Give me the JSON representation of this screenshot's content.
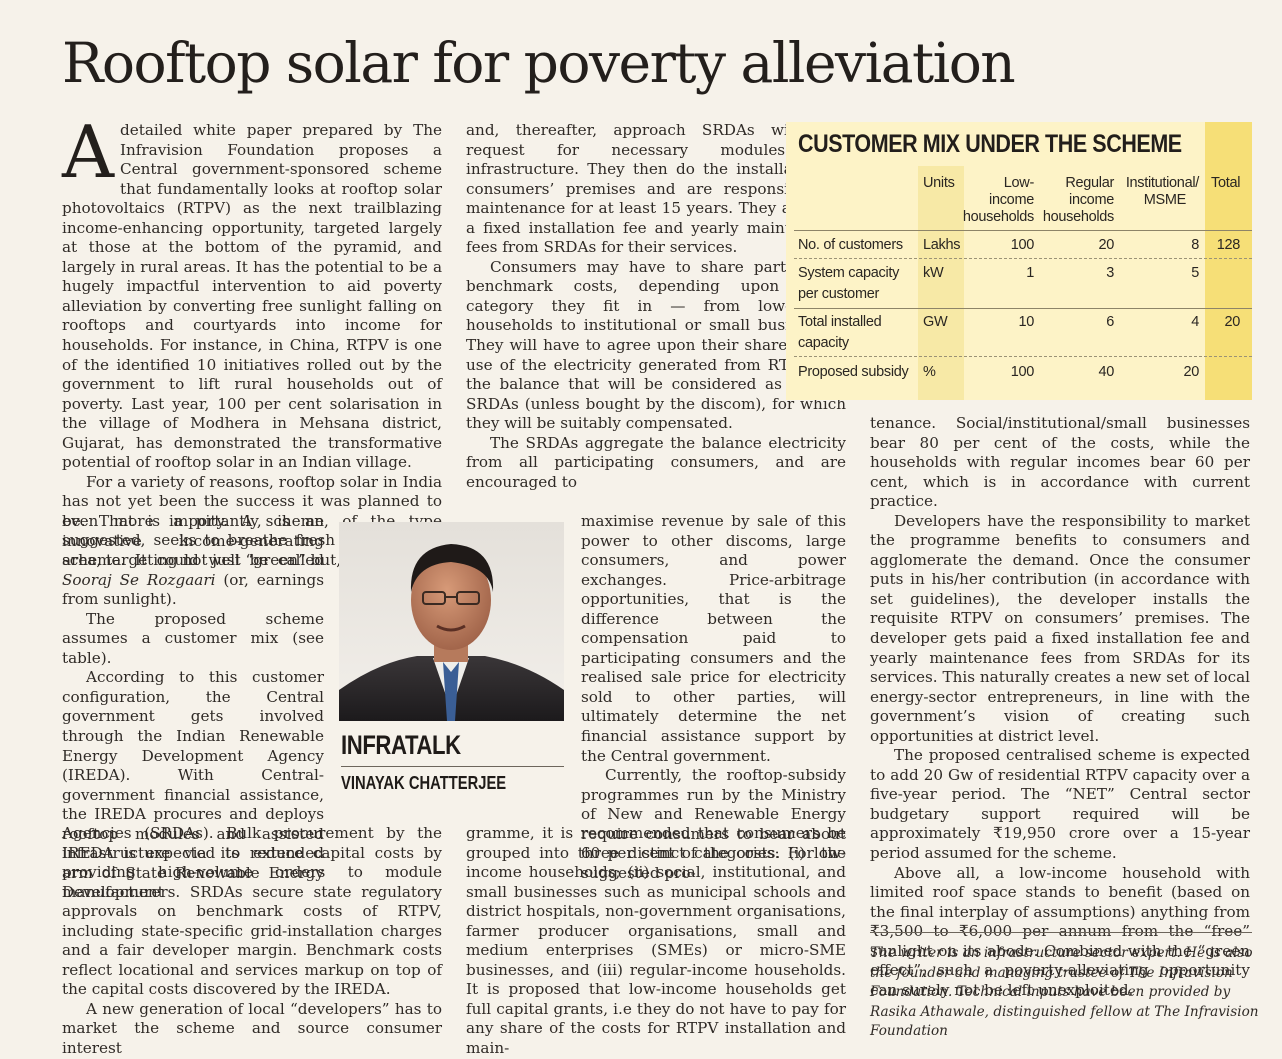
{
  "headline": "Rooftop solar for poverty alleviation",
  "article": {
    "dropcap": "A",
    "col1_lead": "detailed white paper prepared by The Infravision Foundation proposes a Central government-sponsored scheme that fundamentally looks at rooftop solar photovoltaics (RTPV) as the next trailblazing income-enhancing opportunity, targeted largely at those at the bottom of the pyramid, and largely in rural areas. It has the potential to be a hugely impactful intervention to aid poverty alleviation by converting free sunlight falling on rooftops and courtyards into income for households. For instance, in China, RTPV is one of the identified 10 initiatives rolled out by the government to lift rural households out of poverty. Last year, 100 per cent solarisation in the village of Modhera in Mehsana district, Gujarat, has demonstrated the transformative potential of rooftop solar in an Indian village.",
    "col1_p2": "For a variety of reasons, rooftop solar in India has not yet been the success it was planned to be. That is a pity. A scheme, of the type suggested, seeks to breathe fresh life into this area, targeting not just “green” but,",
    "col1b_p2_cont_a": "even more importantly, is an innovative income-generating scheme. It could well be called",
    "col1b_p2_cont_em": "Sooraj Se Rozgaari",
    "col1b_p2_cont_b": "(or, earnings from sunlight).",
    "col1b_p3": "The proposed scheme assumes a customer mix (see table).",
    "col1b_p4": "According to this customer configuration, the Central government gets involved through the Indian Renewable Energy Development Agency (IREDA). With Central-government financial assistance, the IREDA procures and deploys rooftop modules and assisted infrastructure via its extended arm of State Renewable Energy Development",
    "col1c_p4_cont": "Agencies (SRDAs). Bulk procurement by the IREDA is expected to reduce capital costs by providing high-volume orders to module manufacturers. SRDAs secure state regulatory approvals on benchmark costs of RTPV, including state-specific grid-installation charges and a fair developer margin. Benchmark costs reflect locational and services markup on top of the capital costs discovered by the IREDA.",
    "col1c_p5": "A new generation of local “developers” has to market the scheme and source consumer interest",
    "col2a_p5_cont": "and, thereafter, approach SRDAs with the request for necessary modules and infrastructure. They then do the installation at consumers’ premises and are responsible for maintenance for at least 15 years. They are paid a fixed installation fee and yearly maintenance fees from SRDAs for their services.",
    "col2a_p6": "Consumers may have to share part of the benchmark costs, depending upon which category they fit in — from low-income households to institutional or small businesses. They will have to agree upon their share of self-use of the electricity generated from RTPV and the balance that will be considered as sold to SRDAs (unless bought by the discom), for which they will be suitably compensated.",
    "col2a_p7": "The SRDAs aggregate the balance electricity from all participating consumers, and are encouraged to",
    "col2b_p7_cont": "maximise revenue by sale of this power to other discoms, large consumers, and power exchanges. Price-arbitrage opportunities, that is the difference between the compensation paid to participating consumers and the realised sale price for electricity sold to other parties, will ultimately determine the net financial assistance support by the Central government.",
    "col2b_p8": "Currently, the rooftop-subsidy programmes run by the Ministry of New and Renewable Energy require consumers to bear about 60 per cent of the costs. For the suggested pro-",
    "col2c_p8_cont": "gramme, it is recommended that consumers be grouped into three distinct categories: (i) low-income households; (ii) social, institutional, and small businesses such as municipal schools and district hospitals, non-government organisations, farmer producer organisations, small and medium enterprises (SMEs) or micro-SME businesses, and (iii) regular-income households. It is proposed that low-income households get full capital grants, i.e they do not have to pay for any share of the costs for RTPV installation and main-",
    "col3_p8_cont": "tenance. Social/institutional/small businesses bear 80 per cent of the costs, while the households with regular incomes bear 60 per cent, which is in accordance with current practice.",
    "col3_p9": "Developers have the responsibility to market the programme benefits to consumers and agglomerate the demand. Once the consumer puts in his/her contribution (in accordance with set guidelines), the developer installs the requisite RTPV on consumers’ premises. The developer gets paid a fixed installation fee and yearly maintenance fees from SRDAs for its services. This naturally creates a new set of local energy-sector entrepreneurs, in line with the government’s vision of creating such opportunities at district level.",
    "col3_p10": "The proposed centralised scheme is expected to add 20 Gw of residential RTPV capacity over a five-year period. The “NET” Central sector budgetary support required will be approximately ₹19,950 crore over a 15-year period assumed for the scheme.",
    "col3_p11": "Above all, a low-income household with limited roof space stands to benefit (based on the final interplay of assumptions) anything from ₹3,500 to ₹6,000 per annum from the “free” sunlight on its abode. Combined with the “green effect”, such a poverty-alleviating opportunity can surely not be left unexploited."
  },
  "byline": {
    "column_name": "INFRATALK",
    "author": "VINAYAK CHATTERJEE"
  },
  "footnote": "The writer is an infrastructure sector expert. He is also the founder and managing trustee of The Infravision Foundation. Technical inputs have been provided by Rasika Athawale, distinguished fellow at The Infravision Foundation",
  "chart_data": {
    "type": "table",
    "title": "CUSTOMER MIX UNDER THE SCHEME",
    "columns": [
      "Units",
      "Low-income households",
      "Regular income households",
      "Institutional/ MSME",
      "Total"
    ],
    "rows": [
      {
        "label": "No. of customers",
        "units": "Lakhs",
        "low_income": "100",
        "regular_income": "20",
        "institutional": "8",
        "total": "128"
      },
      {
        "label": "System capacity per customer",
        "units": "kW",
        "low_income": "1",
        "regular_income": "3",
        "institutional": "5",
        "total": ""
      },
      {
        "label": "Total installed capacity",
        "units": "GW",
        "low_income": "10",
        "regular_income": "6",
        "institutional": "4",
        "total": "20"
      },
      {
        "label": "Proposed subsidy",
        "units": "%",
        "low_income": "100",
        "regular_income": "40",
        "institutional": "20",
        "total": ""
      }
    ],
    "header_lines": {
      "units": "Units",
      "low_1": "Low-",
      "low_2": "income",
      "low_3": "households",
      "reg_1": "Regular",
      "reg_2": "income",
      "reg_3": "households",
      "inst_1": "Institutional/",
      "inst_2": "MSME",
      "total": "Total"
    },
    "row_label_lines": {
      "r0": "No. of customers",
      "r1a": "System capacity",
      "r1b": "per customer",
      "r2a": "Total installed",
      "r2b": "capacity",
      "r3": "Proposed subsidy"
    }
  }
}
